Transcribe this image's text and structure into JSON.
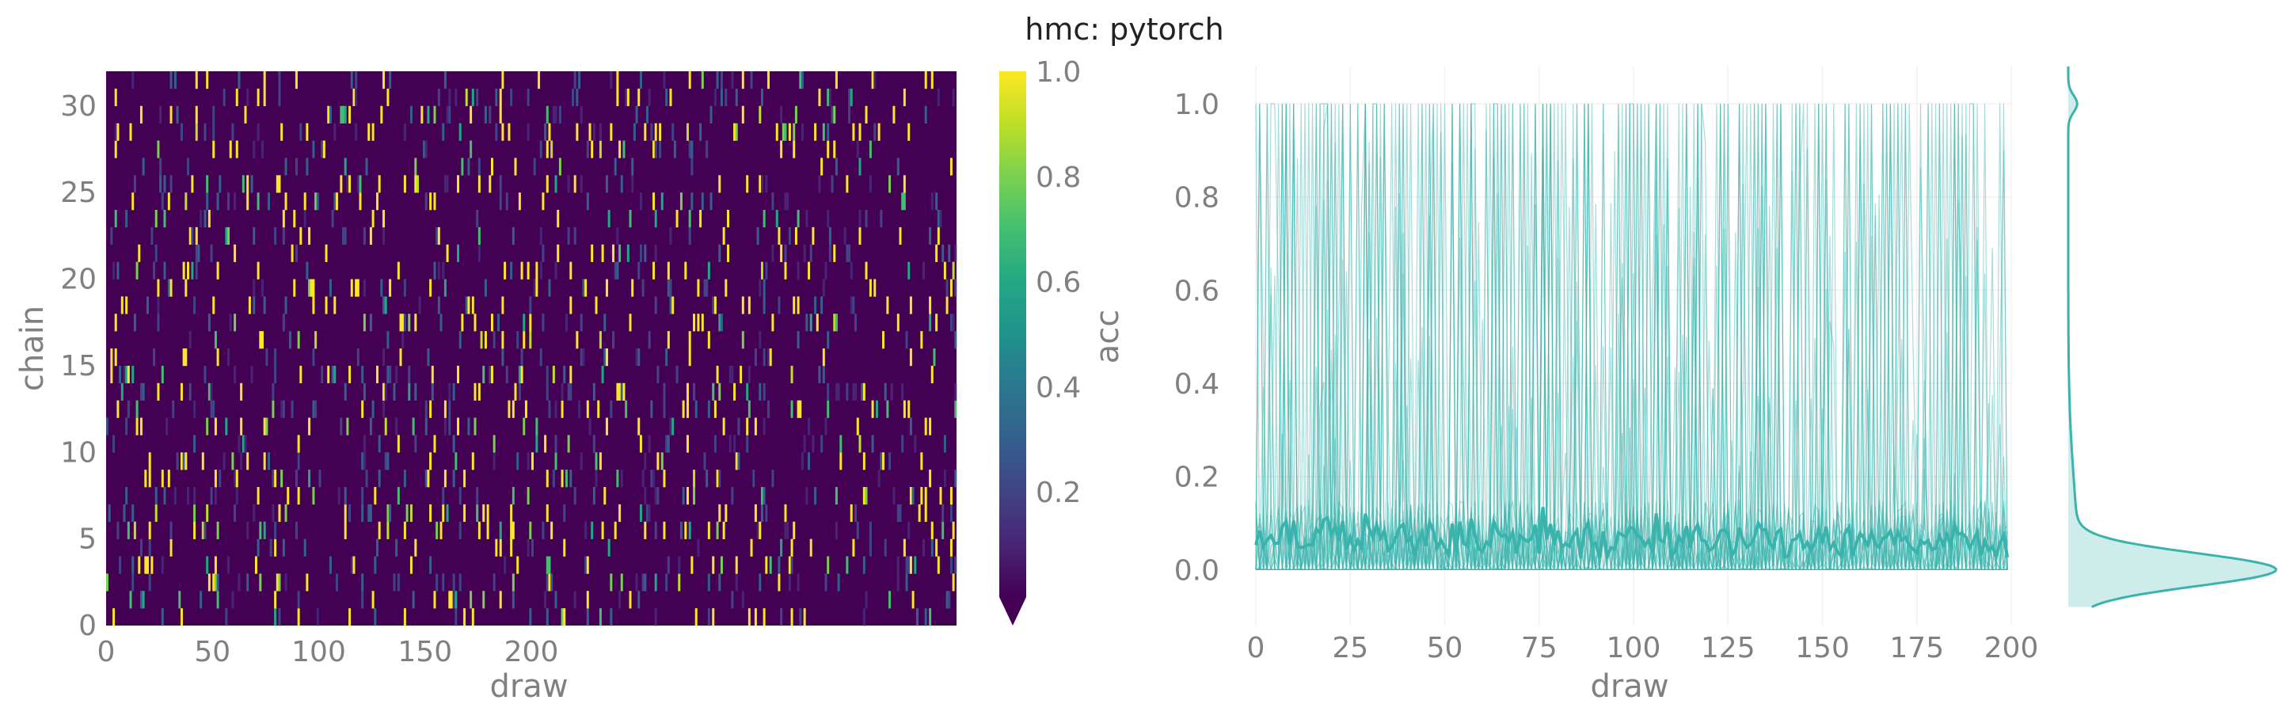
{
  "title": "hmc: pytorch",
  "chart_data": [
    {
      "type": "heatmap",
      "name": "chain-draw-heatmap",
      "xlabel": "draw",
      "ylabel": "chain",
      "x_ticks": [
        "0",
        "50",
        "100",
        "150",
        "200"
      ],
      "y_ticks": [
        "0",
        "5",
        "10",
        "15",
        "20",
        "25",
        "30"
      ],
      "n_chains": 32,
      "n_draws": 400,
      "x_range": [
        0,
        400
      ],
      "y_range": [
        0,
        32
      ],
      "values_description_note": "",
      "colormap": "viridis",
      "colorbar": {
        "label": "acc",
        "ticks": [
          "0.2",
          "0.4",
          "0.6",
          "0.8",
          "1.0"
        ],
        "range": [
          0,
          1
        ]
      },
      "value_summary": {
        "mostly_low": 0.0,
        "frequent_high": 1.0
      }
    },
    {
      "type": "line",
      "name": "trace-plot",
      "xlabel": "draw",
      "ylabel": "",
      "x_ticks": [
        "0",
        "25",
        "50",
        "75",
        "100",
        "125",
        "150",
        "175",
        "200"
      ],
      "y_ticks": [
        "0.0",
        "0.2",
        "0.4",
        "0.6",
        "0.8",
        "1.0"
      ],
      "xlim": [
        0,
        200
      ],
      "ylim": [
        -0.12,
        1.08
      ],
      "n_series": 32,
      "mean_level": 0.06,
      "value_range": [
        0,
        1
      ],
      "color": "#3bb3ad",
      "marginal": {
        "type": "kde",
        "peak_at": 0.0,
        "secondary_peak_at": 1.0,
        "color": "#3bb3ad"
      }
    }
  ]
}
